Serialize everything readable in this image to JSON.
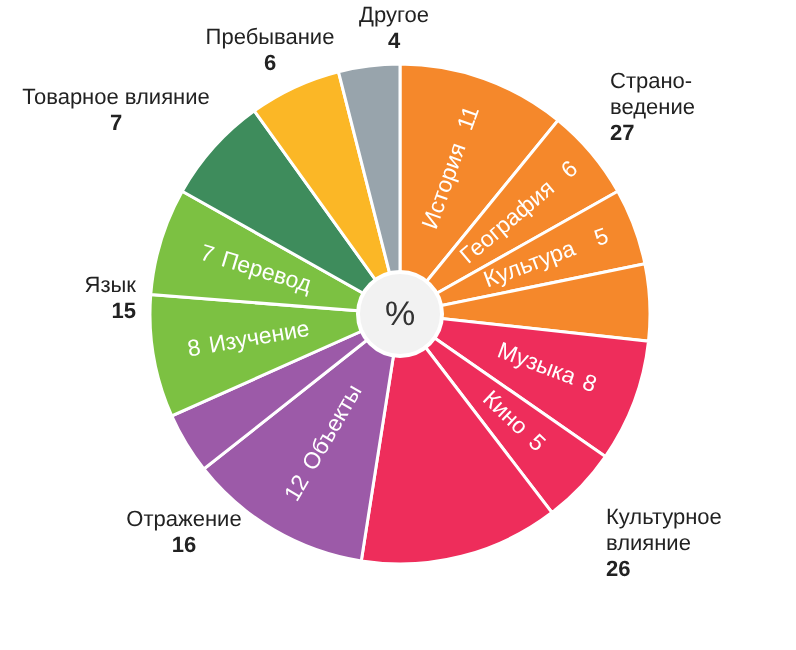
{
  "chart_data": {
    "type": "pie",
    "categories": [
      "История",
      "География",
      "Культура",
      null,
      "Музыка",
      "Кино",
      null,
      "Объекты",
      null,
      "Изучение",
      "Перевод",
      "Товарное влияние",
      "Пребывание",
      "Другое"
    ],
    "values": [
      11,
      6,
      5,
      5,
      8,
      5,
      13,
      12,
      4,
      8,
      7,
      7,
      6,
      4
    ],
    "colors": [
      "#f5882b",
      "#f5882b",
      "#f5882b",
      "#f5882b",
      "#ee2d5b",
      "#ee2d5b",
      "#ee2d5b",
      "#9c5aa8",
      "#9c5aa8",
      "#7cc142",
      "#7cc142",
      "#3e8c5c",
      "#fbb726",
      "#98a4ac"
    ],
    "value_labels": [
      "11",
      "6",
      "5",
      null,
      "8",
      "5",
      null,
      "12",
      null,
      "8",
      "7",
      "7",
      "6",
      "4"
    ],
    "annotations": [
      "Страно-\nведение\n27",
      "Культурное\nвлияние\n26",
      "Отражение\n16",
      "Язык\n15",
      "%"
    ]
  }
}
